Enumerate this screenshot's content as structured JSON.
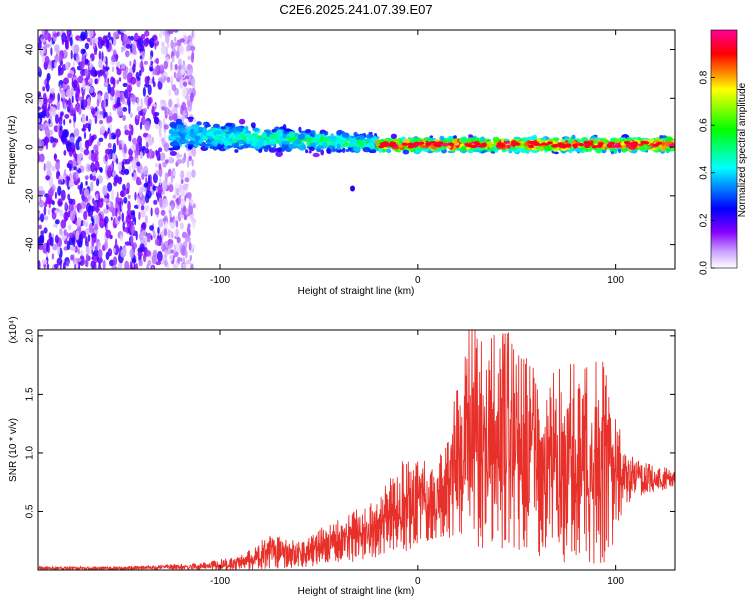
{
  "figure": {
    "title": "C2E6.2025.241.07.39.E07"
  },
  "chart_data": [
    {
      "type": "heatmap",
      "title": "C2E6.2025.241.07.39.E07",
      "xlabel": "Height of straight line (km)",
      "ylabel": "Frequency (Hz)",
      "xlim": [
        -192,
        130
      ],
      "ylim": [
        -50,
        48
      ],
      "xticks": [
        -100,
        0,
        100
      ],
      "yticks": [
        -40,
        -20,
        0,
        20,
        40
      ],
      "colorbar": {
        "label": "Normalized spectral amplitude",
        "range": [
          0.0,
          1.0
        ],
        "ticks": [
          0.0,
          0.2,
          0.4,
          0.6,
          0.8
        ],
        "tick_labels": [
          "0.0",
          "0.2",
          "0.4",
          "0.6",
          "0.8"
        ],
        "colors": [
          "#ffffff",
          "#8800ff",
          "#0000ff",
          "#00ffff",
          "#00ff00",
          "#ffff00",
          "#ff0000",
          "#ff00aa"
        ]
      },
      "description_regions": [
        {
          "x_range": [
            -192,
            -113
          ],
          "freq_range": [
            -50,
            48
          ],
          "amplitude": 0.15
        },
        {
          "x_range": [
            -125,
            -20
          ],
          "freq_center": 5,
          "freq_halfwidth": 7,
          "amplitude": 0.45
        },
        {
          "x_range": [
            -20,
            130
          ],
          "freq_center": 1,
          "freq_halfwidth": 4,
          "amplitude": 0.9
        }
      ]
    },
    {
      "type": "line",
      "xlabel": "Height of straight line (km)",
      "ylabel": "SNR (10 * v/v)",
      "y_multiplier": "(x10⁴)",
      "xlim": [
        -192,
        130
      ],
      "ylim": [
        0,
        2.05
      ],
      "xticks": [
        -100,
        0,
        100
      ],
      "yticks": [
        0.5,
        1.0,
        1.5,
        2.0
      ],
      "ytick_labels": [
        "0.5",
        "1.0",
        "1.5",
        "2.0"
      ],
      "series": [
        {
          "name": "SNR",
          "color": "#e8302a",
          "envelope": [
            {
              "x": -192,
              "low": 0.0,
              "high": 0.03
            },
            {
              "x": -150,
              "low": 0.0,
              "high": 0.03
            },
            {
              "x": -110,
              "low": 0.0,
              "high": 0.06
            },
            {
              "x": -90,
              "low": 0.0,
              "high": 0.12
            },
            {
              "x": -75,
              "low": 0.0,
              "high": 0.3
            },
            {
              "x": -60,
              "low": 0.02,
              "high": 0.25
            },
            {
              "x": -40,
              "low": 0.05,
              "high": 0.45
            },
            {
              "x": -20,
              "low": 0.1,
              "high": 0.6
            },
            {
              "x": -8,
              "low": 0.15,
              "high": 1.02
            },
            {
              "x": 10,
              "low": 0.25,
              "high": 0.9
            },
            {
              "x": 25,
              "low": 0.2,
              "high": 1.9
            },
            {
              "x": 28,
              "low": 0.2,
              "high": 2.05
            },
            {
              "x": 45,
              "low": 0.15,
              "high": 2.05
            },
            {
              "x": 60,
              "low": 0.1,
              "high": 1.7
            },
            {
              "x": 80,
              "low": 0.05,
              "high": 1.8
            },
            {
              "x": 97,
              "low": 0.05,
              "high": 1.8
            },
            {
              "x": 104,
              "low": 0.55,
              "high": 1.0
            },
            {
              "x": 130,
              "low": 0.72,
              "high": 0.85
            }
          ]
        }
      ]
    }
  ]
}
